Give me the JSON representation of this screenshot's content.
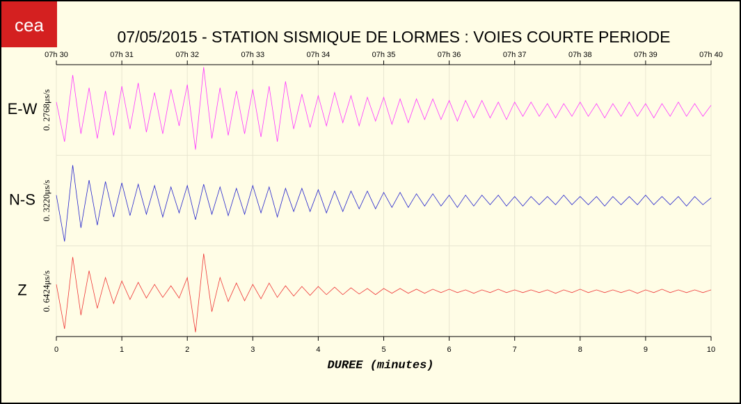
{
  "logo": "cea",
  "chart_data": {
    "type": "line",
    "title": "07/05/2015  -  STATION SISMIQUE DE LORMES : VOIES COURTE PERIODE",
    "xlabel": "DUREE (minutes)",
    "xlim": [
      0,
      10
    ],
    "xticks": [
      0,
      1,
      2,
      3,
      4,
      5,
      6,
      7,
      8,
      9,
      10
    ],
    "top_ticks": [
      {
        "value": 0,
        "label": "07h 30"
      },
      {
        "value": 1,
        "label": "07h 31"
      },
      {
        "value": 2,
        "label": "07h 32"
      },
      {
        "value": 3,
        "label": "07h 33"
      },
      {
        "value": 4,
        "label": "07h 34"
      },
      {
        "value": 5,
        "label": "07h 35"
      },
      {
        "value": 6,
        "label": "07h 36"
      },
      {
        "value": 7,
        "label": "07h 37"
      },
      {
        "value": 8,
        "label": "07h 38"
      },
      {
        "value": 9,
        "label": "07h 39"
      },
      {
        "value": 10,
        "label": "07h 40"
      }
    ],
    "grid": true,
    "x": [
      0,
      0.125,
      0.25,
      0.375,
      0.5,
      0.625,
      0.75,
      0.875,
      1,
      1.125,
      1.25,
      1.375,
      1.5,
      1.625,
      1.75,
      1.875,
      2,
      2.125,
      2.25,
      2.375,
      2.5,
      2.625,
      2.75,
      2.875,
      3,
      3.125,
      3.25,
      3.375,
      3.5,
      3.625,
      3.75,
      3.875,
      4,
      4.125,
      4.25,
      4.375,
      4.5,
      4.625,
      4.75,
      4.875,
      5,
      5.125,
      5.25,
      5.375,
      5.5,
      5.625,
      5.75,
      5.875,
      6,
      6.125,
      6.25,
      6.375,
      6.5,
      6.625,
      6.75,
      6.875,
      7,
      7.125,
      7.25,
      7.375,
      7.5,
      7.625,
      7.75,
      7.875,
      8,
      8.125,
      8.25,
      8.375,
      8.5,
      8.625,
      8.75,
      8.875,
      9,
      9.125,
      9.25,
      9.375,
      9.5,
      9.625,
      9.75,
      9.875,
      10
    ],
    "series": [
      {
        "name": "E-W",
        "scale_label": "0. 2768μs/s",
        "color": "#ff33ff",
        "ylim": [
          -0.2768,
          0.2768
        ],
        "values": [
          0.05,
          -0.2,
          0.22,
          -0.15,
          0.14,
          -0.18,
          0.12,
          -0.16,
          0.15,
          -0.12,
          0.17,
          -0.14,
          0.11,
          -0.15,
          0.13,
          -0.1,
          0.16,
          -0.25,
          0.27,
          -0.18,
          0.14,
          -0.16,
          0.12,
          -0.15,
          0.13,
          -0.17,
          0.15,
          -0.2,
          0.18,
          -0.12,
          0.1,
          -0.11,
          0.09,
          -0.1,
          0.11,
          -0.08,
          0.09,
          -0.1,
          0.08,
          -0.07,
          0.08,
          -0.09,
          0.07,
          -0.08,
          0.07,
          -0.06,
          0.07,
          -0.06,
          0.06,
          -0.07,
          0.06,
          -0.05,
          0.06,
          -0.05,
          0.05,
          -0.06,
          0.05,
          -0.04,
          0.05,
          -0.04,
          0.04,
          -0.05,
          0.04,
          -0.04,
          0.05,
          -0.04,
          0.04,
          -0.05,
          0.04,
          -0.04,
          0.05,
          -0.04,
          0.04,
          -0.05,
          0.04,
          -0.04,
          0.05,
          -0.04,
          0.04,
          -0.04,
          0.03
        ]
      },
      {
        "name": "N-S",
        "scale_label": "0. 3220μs/s",
        "color": "#2222cc",
        "ylim": [
          -0.322,
          0.322
        ],
        "values": [
          0.04,
          -0.3,
          0.26,
          -0.2,
          0.15,
          -0.18,
          0.14,
          -0.12,
          0.13,
          -0.11,
          0.12,
          -0.1,
          0.11,
          -0.12,
          0.1,
          -0.09,
          0.11,
          -0.14,
          0.12,
          -0.1,
          0.1,
          -0.11,
          0.09,
          -0.1,
          0.11,
          -0.09,
          0.1,
          -0.12,
          0.09,
          -0.08,
          0.09,
          -0.08,
          0.08,
          -0.09,
          0.07,
          -0.08,
          0.07,
          -0.06,
          0.07,
          -0.06,
          0.06,
          -0.05,
          0.06,
          -0.05,
          0.05,
          -0.04,
          0.05,
          -0.04,
          0.04,
          -0.05,
          0.04,
          -0.04,
          0.04,
          -0.03,
          0.04,
          -0.04,
          0.03,
          -0.04,
          0.03,
          -0.03,
          0.03,
          -0.03,
          0.04,
          -0.03,
          0.03,
          -0.03,
          0.03,
          -0.04,
          0.03,
          -0.03,
          0.03,
          -0.03,
          0.04,
          -0.03,
          0.03,
          -0.03,
          0.03,
          -0.04,
          0.03,
          -0.03,
          0.02
        ]
      },
      {
        "name": "Z",
        "scale_label": "0. 6424μs/s",
        "color": "#ee3333",
        "ylim": [
          -0.6424,
          0.6424
        ],
        "values": [
          0.1,
          -0.55,
          0.5,
          -0.35,
          0.3,
          -0.25,
          0.2,
          -0.18,
          0.15,
          -0.12,
          0.13,
          -0.1,
          0.1,
          -0.09,
          0.08,
          -0.1,
          0.2,
          -0.6,
          0.55,
          -0.3,
          0.2,
          -0.15,
          0.12,
          -0.14,
          0.1,
          -0.11,
          0.12,
          -0.09,
          0.08,
          -0.07,
          0.07,
          -0.06,
          0.07,
          -0.05,
          0.06,
          -0.05,
          0.05,
          -0.04,
          0.04,
          -0.05,
          0.04,
          -0.03,
          0.04,
          -0.03,
          0.03,
          -0.03,
          0.03,
          -0.02,
          0.03,
          -0.02,
          0.02,
          -0.03,
          0.02,
          -0.02,
          0.03,
          -0.02,
          0.02,
          -0.02,
          0.02,
          -0.02,
          0.02,
          -0.03,
          0.02,
          -0.02,
          0.03,
          -0.02,
          0.02,
          -0.02,
          0.02,
          -0.02,
          0.02,
          -0.03,
          0.02,
          -0.02,
          0.03,
          -0.02,
          0.02,
          -0.02,
          0.02,
          -0.02,
          0.02
        ]
      }
    ]
  }
}
